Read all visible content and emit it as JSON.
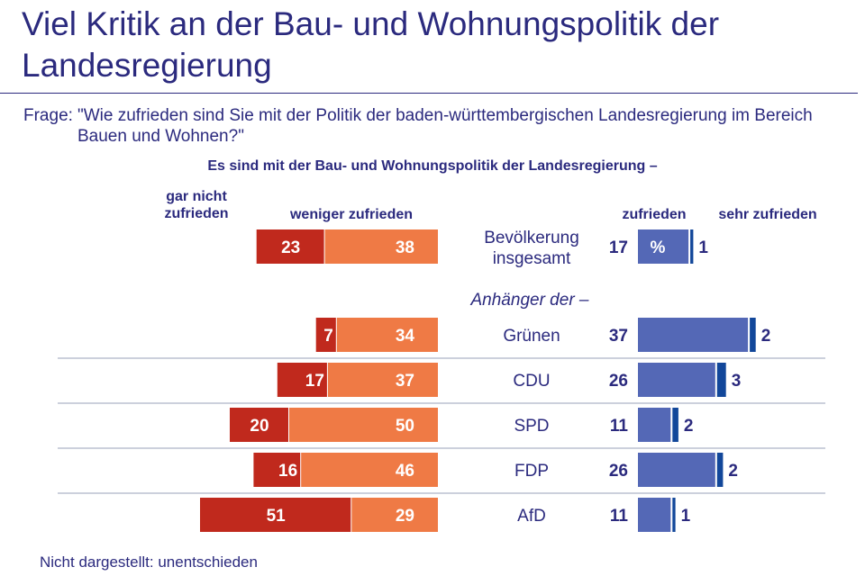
{
  "title": "Viel Kritik an der Bau- und Wohnungspolitik der Landesregierung",
  "question_prefix": "Frage:",
  "question": "\"Wie zufrieden sind Sie mit der Politik der baden-württembergischen Landesregierung im Bereich Bauen und Wohnen?\"",
  "footnote": "Nicht dargestellt: unentschieden",
  "colors": {
    "gar_nicht_zufrieden": "#c0291d",
    "weniger_zufrieden": "#ef7a45",
    "zufrieden": "#5468b6",
    "sehr_zufrieden": "#12479a",
    "text": "#2b2a7e"
  },
  "chart_data": {
    "type": "bar",
    "title": "Es sind mit der Bau- und Wohnungspolitik der Landesregierung –",
    "group_label": "Anhänger der –",
    "categories": [
      "Bevölkerung insgesamt",
      "Grünen",
      "CDU",
      "SPD",
      "FDP",
      "AfD"
    ],
    "category_lines": [
      [
        "Bevölkerung",
        "insgesamt"
      ],
      [
        "Grünen"
      ],
      [
        "CDU"
      ],
      [
        "SPD"
      ],
      [
        "FDP"
      ],
      [
        "AfD"
      ]
    ],
    "series": [
      {
        "name": "gar nicht zufrieden",
        "values": [
          23,
          7,
          17,
          20,
          16,
          51
        ]
      },
      {
        "name": "weniger zufrieden",
        "values": [
          38,
          34,
          37,
          50,
          46,
          29
        ]
      },
      {
        "name": "zufrieden",
        "values": [
          17,
          37,
          26,
          11,
          26,
          11
        ]
      },
      {
        "name": "sehr zufrieden",
        "values": [
          1,
          2,
          3,
          2,
          2,
          1
        ]
      }
    ],
    "unit_marker": "%",
    "headers": {
      "gar_nicht_line1": "gar nicht",
      "gar_nicht_line2": "zufrieden",
      "weniger": "weniger zufrieden",
      "zufrieden": "zufrieden",
      "sehr": "sehr zufrieden"
    }
  }
}
